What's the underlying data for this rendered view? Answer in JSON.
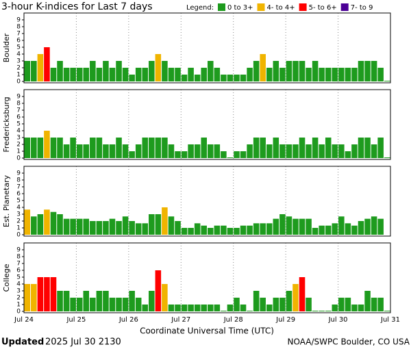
{
  "chart_data": {
    "type": "bar",
    "title": "3-hour K-indices for Last 7 days",
    "legend": {
      "title": "Legend:",
      "items": [
        {
          "label": "0 to 3+",
          "color": "#1e9b1e"
        },
        {
          "label": "4- to 4+",
          "color": "#f0b400"
        },
        {
          "label": "5- to 6+",
          "color": "#ff0000"
        },
        {
          "label": "7- to 9",
          "color": "#4b0096"
        }
      ]
    },
    "x_label": "Coordinate Universal Time (UTC)",
    "xlim": [
      0,
      56
    ],
    "xticks": [
      {
        "value": 0,
        "label": "Jul 24"
      },
      {
        "value": 8,
        "label": "Jul 25"
      },
      {
        "value": 16,
        "label": "Jul 26"
      },
      {
        "value": 24,
        "label": "Jul 27"
      },
      {
        "value": 32,
        "label": "Jul 28"
      },
      {
        "value": 40,
        "label": "Jul 29"
      },
      {
        "value": 48,
        "label": "Jul 30"
      },
      {
        "value": 56,
        "label": "Jul 31"
      }
    ],
    "ylim": [
      0,
      9
    ],
    "yticks": [
      0,
      1,
      2,
      3,
      4,
      5,
      6,
      7,
      8,
      9
    ],
    "panels": [
      {
        "ylabel": "Boulder",
        "values": [
          3,
          3,
          4,
          5,
          2,
          3,
          2,
          2,
          2,
          2,
          3,
          2,
          3,
          2,
          3,
          2,
          1,
          2,
          2,
          3,
          4,
          3,
          2,
          2,
          1,
          2,
          1,
          2,
          3,
          2,
          1,
          1,
          1,
          1,
          2,
          3,
          4,
          2,
          3,
          2,
          3,
          3,
          3,
          2,
          3,
          2,
          2,
          2,
          2,
          2,
          2,
          3,
          3,
          3,
          2,
          0
        ],
        "colors": [
          "#1e9b1e",
          "#1e9b1e",
          "#f0b400",
          "#ff0000",
          "#1e9b1e",
          "#1e9b1e",
          "#1e9b1e",
          "#1e9b1e",
          "#1e9b1e",
          "#1e9b1e",
          "#1e9b1e",
          "#1e9b1e",
          "#1e9b1e",
          "#1e9b1e",
          "#1e9b1e",
          "#1e9b1e",
          "#1e9b1e",
          "#1e9b1e",
          "#1e9b1e",
          "#1e9b1e",
          "#f0b400",
          "#1e9b1e",
          "#1e9b1e",
          "#1e9b1e",
          "#1e9b1e",
          "#1e9b1e",
          "#1e9b1e",
          "#1e9b1e",
          "#1e9b1e",
          "#1e9b1e",
          "#1e9b1e",
          "#1e9b1e",
          "#1e9b1e",
          "#1e9b1e",
          "#1e9b1e",
          "#1e9b1e",
          "#f0b400",
          "#1e9b1e",
          "#1e9b1e",
          "#1e9b1e",
          "#1e9b1e",
          "#1e9b1e",
          "#1e9b1e",
          "#1e9b1e",
          "#1e9b1e",
          "#1e9b1e",
          "#1e9b1e",
          "#1e9b1e",
          "#1e9b1e",
          "#1e9b1e",
          "#1e9b1e",
          "#1e9b1e",
          "#1e9b1e",
          "#1e9b1e",
          "#1e9b1e",
          "#1e9b1e"
        ]
      },
      {
        "ylabel": "Fredericksburg",
        "values": [
          3,
          3,
          3,
          4,
          3,
          3,
          2,
          3,
          2,
          2,
          3,
          3,
          2,
          2,
          3,
          2,
          1,
          2,
          3,
          3,
          3,
          3,
          2,
          1,
          1,
          2,
          2,
          3,
          2,
          2,
          1,
          0,
          1,
          1,
          2,
          3,
          3,
          2,
          3,
          2,
          2,
          2,
          3,
          2,
          3,
          2,
          3,
          2,
          2,
          1,
          2,
          3,
          3,
          2,
          3,
          0
        ],
        "colors": [
          "#1e9b1e",
          "#1e9b1e",
          "#1e9b1e",
          "#f0b400",
          "#1e9b1e",
          "#1e9b1e",
          "#1e9b1e",
          "#1e9b1e",
          "#1e9b1e",
          "#1e9b1e",
          "#1e9b1e",
          "#1e9b1e",
          "#1e9b1e",
          "#1e9b1e",
          "#1e9b1e",
          "#1e9b1e",
          "#1e9b1e",
          "#1e9b1e",
          "#1e9b1e",
          "#1e9b1e",
          "#1e9b1e",
          "#1e9b1e",
          "#1e9b1e",
          "#1e9b1e",
          "#1e9b1e",
          "#1e9b1e",
          "#1e9b1e",
          "#1e9b1e",
          "#1e9b1e",
          "#1e9b1e",
          "#1e9b1e",
          "#1e9b1e",
          "#1e9b1e",
          "#1e9b1e",
          "#1e9b1e",
          "#1e9b1e",
          "#1e9b1e",
          "#1e9b1e",
          "#1e9b1e",
          "#1e9b1e",
          "#1e9b1e",
          "#1e9b1e",
          "#1e9b1e",
          "#1e9b1e",
          "#1e9b1e",
          "#1e9b1e",
          "#1e9b1e",
          "#1e9b1e",
          "#1e9b1e",
          "#1e9b1e",
          "#1e9b1e",
          "#1e9b1e",
          "#1e9b1e",
          "#1e9b1e",
          "#1e9b1e",
          "#1e9b1e"
        ]
      },
      {
        "ylabel": "Est. Planetary",
        "values": [
          3.67,
          2.67,
          3,
          3.67,
          3.33,
          3,
          2.33,
          2.33,
          2.33,
          2.33,
          2,
          2,
          2,
          2.33,
          2,
          2.67,
          2,
          1.67,
          1.67,
          3,
          3,
          4,
          2.67,
          2,
          1,
          1,
          1.67,
          1.33,
          1,
          1.33,
          1.33,
          1,
          1,
          1.33,
          1.33,
          1.67,
          1.67,
          1.67,
          2.33,
          3,
          2.67,
          2.33,
          2.33,
          2.33,
          1,
          1.33,
          1.33,
          1.67,
          2.67,
          1.67,
          1.33,
          2,
          2.33,
          2.67,
          2.33,
          null
        ],
        "colors": [
          "#f0b400",
          "#1e9b1e",
          "#1e9b1e",
          "#f0b400",
          "#1e9b1e",
          "#1e9b1e",
          "#1e9b1e",
          "#1e9b1e",
          "#1e9b1e",
          "#1e9b1e",
          "#1e9b1e",
          "#1e9b1e",
          "#1e9b1e",
          "#1e9b1e",
          "#1e9b1e",
          "#1e9b1e",
          "#1e9b1e",
          "#1e9b1e",
          "#1e9b1e",
          "#1e9b1e",
          "#1e9b1e",
          "#f0b400",
          "#1e9b1e",
          "#1e9b1e",
          "#1e9b1e",
          "#1e9b1e",
          "#1e9b1e",
          "#1e9b1e",
          "#1e9b1e",
          "#1e9b1e",
          "#1e9b1e",
          "#1e9b1e",
          "#1e9b1e",
          "#1e9b1e",
          "#1e9b1e",
          "#1e9b1e",
          "#1e9b1e",
          "#1e9b1e",
          "#1e9b1e",
          "#1e9b1e",
          "#1e9b1e",
          "#1e9b1e",
          "#1e9b1e",
          "#1e9b1e",
          "#1e9b1e",
          "#1e9b1e",
          "#1e9b1e",
          "#1e9b1e",
          "#1e9b1e",
          "#1e9b1e",
          "#1e9b1e",
          "#1e9b1e",
          "#1e9b1e",
          "#1e9b1e",
          "#1e9b1e",
          "#1e9b1e"
        ]
      },
      {
        "ylabel": "College",
        "values": [
          4,
          4,
          5,
          5,
          5,
          3,
          3,
          2,
          2,
          3,
          2,
          3,
          3,
          2,
          2,
          2,
          3,
          2,
          1,
          3,
          6,
          4,
          1,
          1,
          1,
          1,
          1,
          1,
          1,
          1,
          0,
          1,
          2,
          1,
          0,
          3,
          2,
          1,
          2,
          2,
          3,
          4,
          5,
          2,
          0,
          0,
          0,
          1,
          2,
          2,
          1,
          1,
          3,
          2,
          2,
          0
        ],
        "colors": [
          "#f0b400",
          "#f0b400",
          "#ff0000",
          "#ff0000",
          "#ff0000",
          "#1e9b1e",
          "#1e9b1e",
          "#1e9b1e",
          "#1e9b1e",
          "#1e9b1e",
          "#1e9b1e",
          "#1e9b1e",
          "#1e9b1e",
          "#1e9b1e",
          "#1e9b1e",
          "#1e9b1e",
          "#1e9b1e",
          "#1e9b1e",
          "#1e9b1e",
          "#1e9b1e",
          "#ff0000",
          "#f0b400",
          "#1e9b1e",
          "#1e9b1e",
          "#1e9b1e",
          "#1e9b1e",
          "#1e9b1e",
          "#1e9b1e",
          "#1e9b1e",
          "#1e9b1e",
          "#1e9b1e",
          "#1e9b1e",
          "#1e9b1e",
          "#1e9b1e",
          "#1e9b1e",
          "#1e9b1e",
          "#1e9b1e",
          "#1e9b1e",
          "#1e9b1e",
          "#1e9b1e",
          "#1e9b1e",
          "#f0b400",
          "#ff0000",
          "#1e9b1e",
          "#1e9b1e",
          "#1e9b1e",
          "#1e9b1e",
          "#1e9b1e",
          "#1e9b1e",
          "#1e9b1e",
          "#1e9b1e",
          "#1e9b1e",
          "#1e9b1e",
          "#1e9b1e",
          "#1e9b1e",
          "#1e9b1e"
        ]
      }
    ],
    "footer": {
      "updated_label": "Updated",
      "updated": "2025 Jul 30 2130",
      "source": "NOAA/SWPC Boulder, CO USA"
    }
  }
}
